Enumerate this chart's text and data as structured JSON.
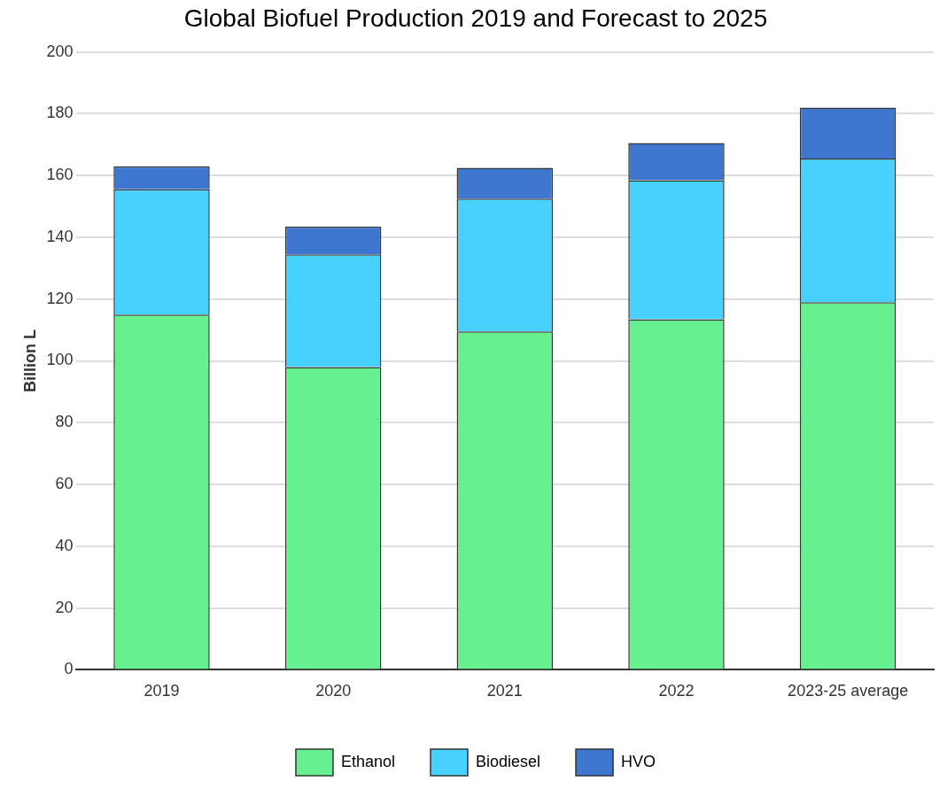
{
  "chart_data": {
    "type": "bar",
    "title": "Global Biofuel Production 2019 and Forecast to 2025",
    "ylabel": "Billion L",
    "categories": [
      "2019",
      "2020",
      "2021",
      "2022",
      "2023-25 average"
    ],
    "stacked": true,
    "series": [
      {
        "name": "Ethanol",
        "color": "#66f08f",
        "values": [
          115,
          98,
          109.5,
          113.5,
          119
        ]
      },
      {
        "name": "Biodiesel",
        "color": "#47d1ff",
        "values": [
          40.5,
          36.5,
          43,
          45,
          46.5
        ]
      },
      {
        "name": "HVO",
        "color": "#3f76cf",
        "values": [
          7.5,
          9,
          10,
          12,
          16.5
        ]
      }
    ],
    "ylim": [
      0,
      200
    ],
    "yticks": [
      0,
      20,
      40,
      60,
      80,
      100,
      120,
      140,
      160,
      180,
      200
    ],
    "grid": "y",
    "legend": "bottom"
  }
}
